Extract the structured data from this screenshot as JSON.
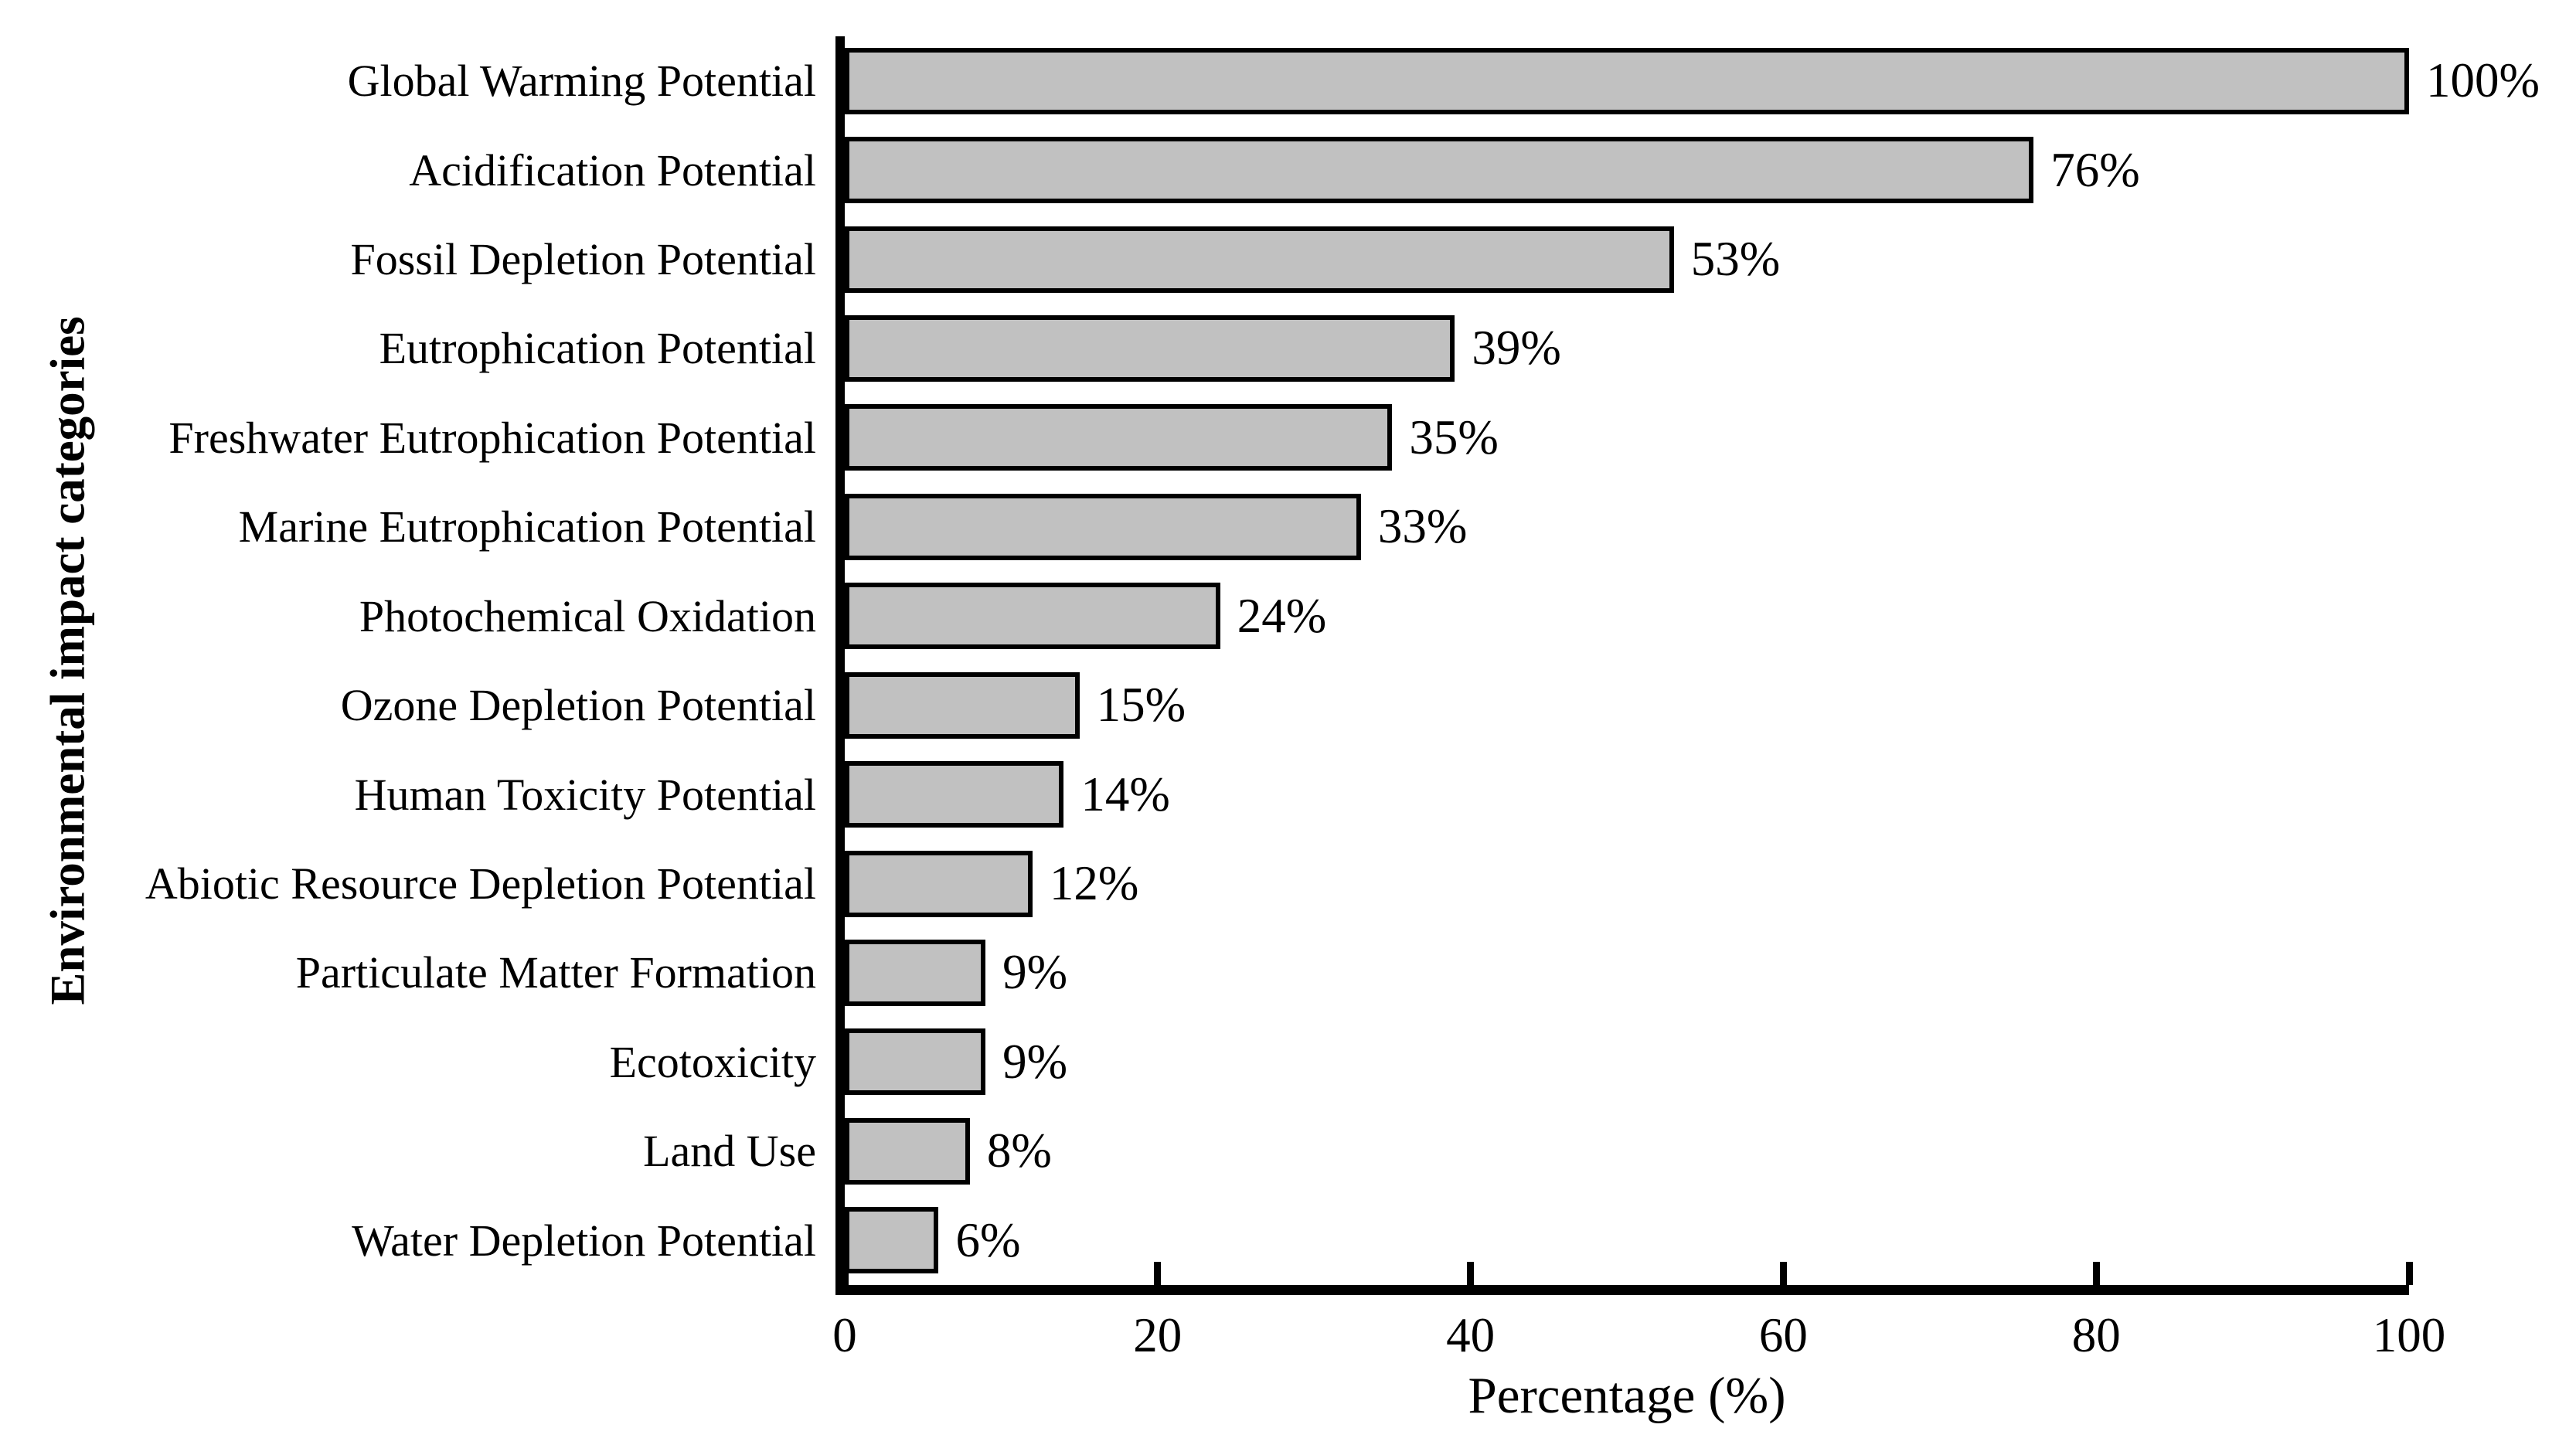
{
  "figure": {
    "background_color": "#ffffff",
    "text_color": "#000000"
  },
  "chart_data": {
    "type": "bar",
    "orientation": "horizontal",
    "title": "",
    "xlabel": "Percentage (%)",
    "ylabel": "Environmental impact categories",
    "xlim": [
      0,
      100
    ],
    "xticks": [
      0,
      20,
      40,
      60,
      80,
      100
    ],
    "grid": false,
    "legend": "none",
    "bar_color": "#c1c1c1",
    "bar_border_color": "#000000",
    "categories": [
      "Global Warming Potential",
      "Acidification Potential",
      "Fossil Depletion Potential",
      "Eutrophication Potential",
      "Freshwater Eutrophication Potential",
      "Marine Eutrophication Potential",
      "Photochemical Oxidation",
      "Ozone Depletion Potential",
      "Human Toxicity Potential",
      "Abiotic Resource Depletion Potential",
      "Particulate Matter Formation",
      "Ecotoxicity",
      "Land Use",
      "Water Depletion Potential"
    ],
    "values": [
      100,
      76,
      53,
      39,
      35,
      33,
      24,
      15,
      14,
      12,
      9,
      9,
      8,
      6
    ],
    "value_labels": [
      "100%",
      "76%",
      "53%",
      "39%",
      "35%",
      "33%",
      "24%",
      "15%",
      "14%",
      "12%",
      "9%",
      "9%",
      "8%",
      "6%"
    ]
  }
}
